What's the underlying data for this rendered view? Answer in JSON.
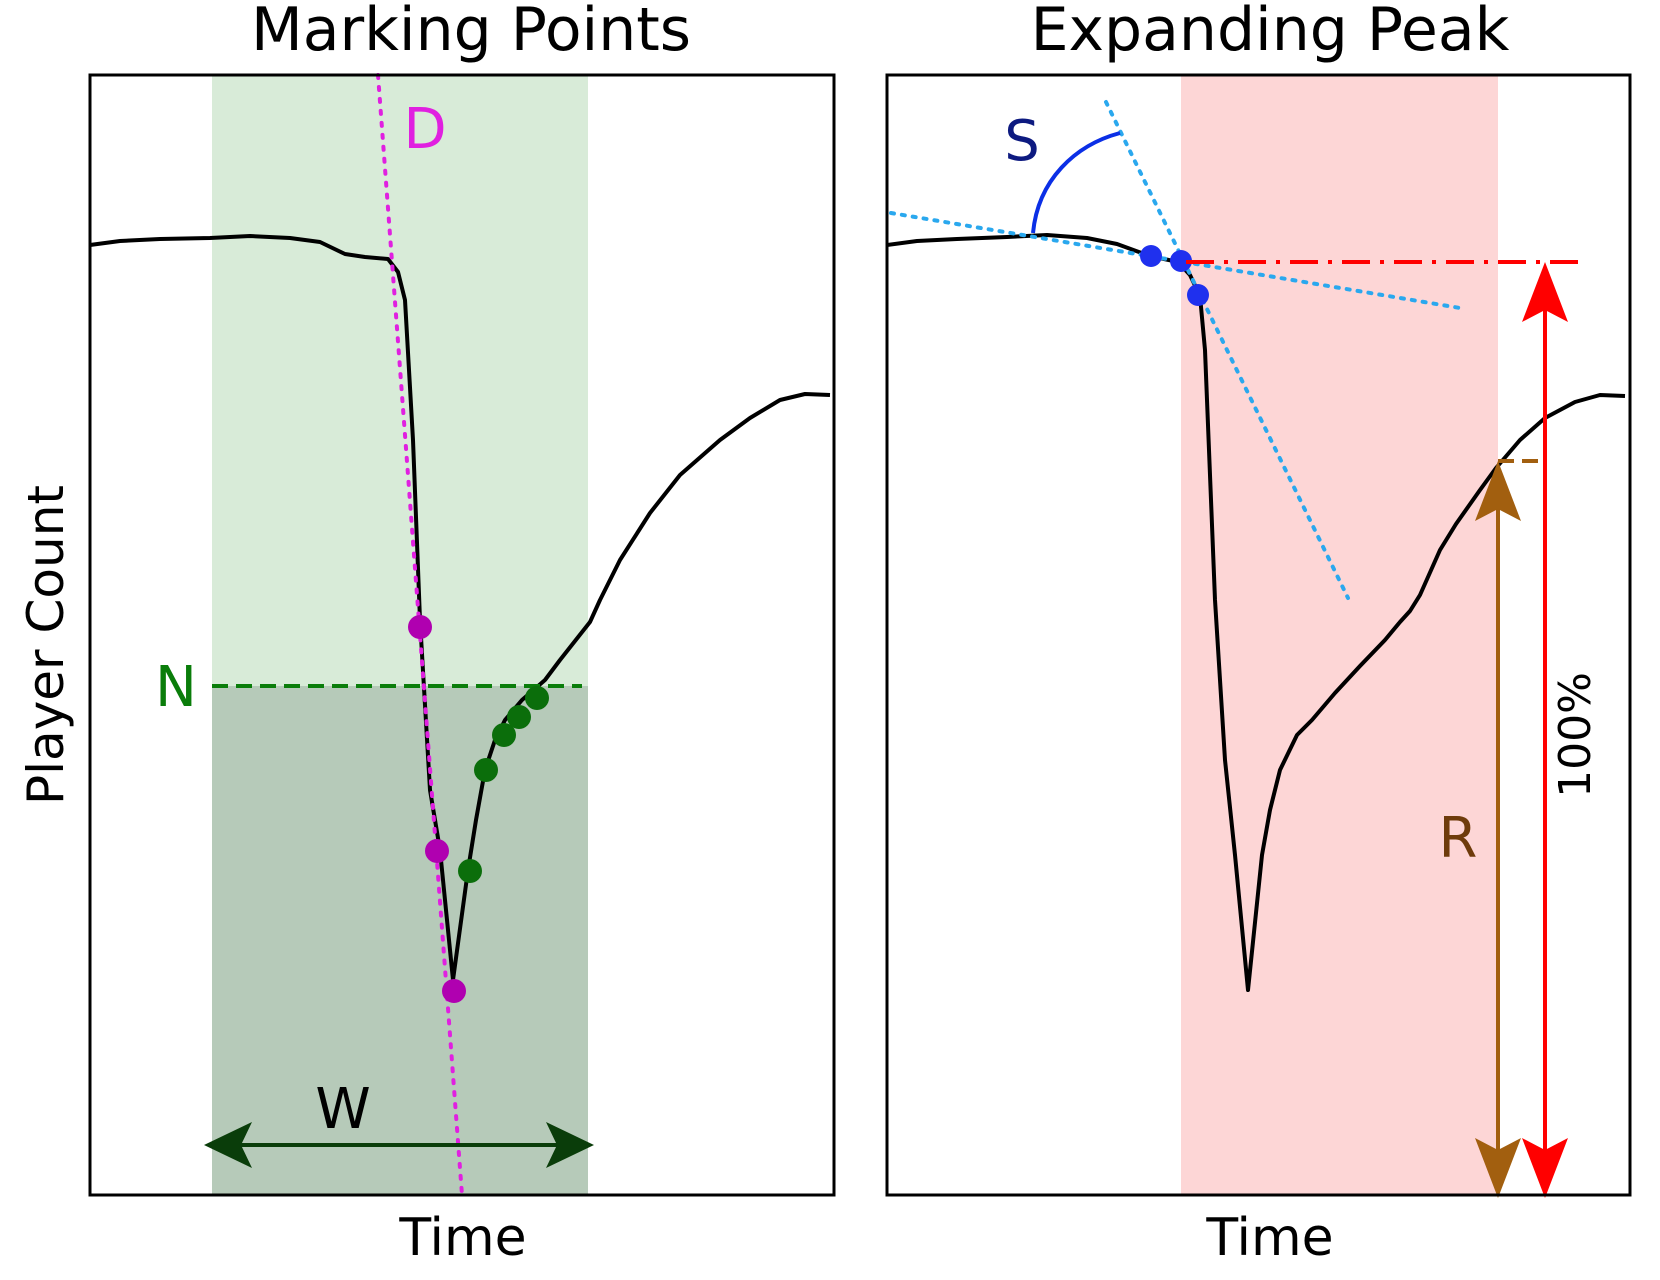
{
  "figure": {
    "ylabel": "Player Count",
    "panels": [
      {
        "title": "Marking Points",
        "xlabel": "Time",
        "labels": {
          "D": "D",
          "N": "N",
          "W": "W"
        }
      },
      {
        "title": "Expanding Peak",
        "xlabel": "Time",
        "labels": {
          "S": "S",
          "R": "R",
          "pct": "100%"
        }
      }
    ]
  },
  "colors": {
    "curve": "#000000",
    "green_band": "#d8ebd8",
    "green_dark_band": "#b6cab9",
    "magenta": "#e020e0",
    "magenta_point": "#b000b0",
    "green": "#0a7d0a",
    "green_point": "#0b6e0b",
    "w_arrow": "#0a3d0a",
    "red_band": "#fdd6d6",
    "red": "#ff0000",
    "brown": "#a25f0f",
    "brown_text": "#6e3b0b",
    "blue_tangent": "#2aa8ee",
    "blue_arc": "#0b2fe6",
    "blue_point": "#1f30ee",
    "navy_text": "#0d1a80"
  }
}
